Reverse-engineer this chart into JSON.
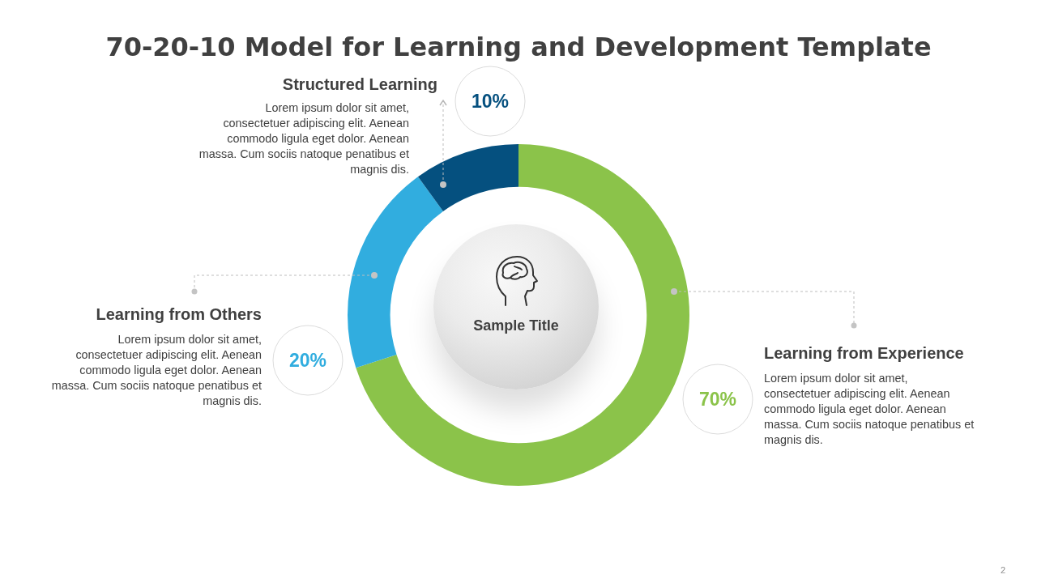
{
  "chart_data": {
    "type": "donut",
    "title": "70-20-10 Model for Learning and Development Template",
    "categories": [
      "Learning from Experience",
      "Learning from Others",
      "Structured Learning"
    ],
    "values": [
      70,
      20,
      10
    ],
    "colors": [
      "#8bc34a",
      "#31addf",
      "#05507f"
    ],
    "value_labels": [
      "70%",
      "20%",
      "10%"
    ],
    "annotations": [
      "Sample Title",
      "Lorem ipsum dolor sit amet, consectetuer adipiscing elit. Aenean commodo ligula eget dolor. Aenean massa. Cum sociis natoque penatibus et magnis dis.",
      "Lorem ipsum dolor sit amet, consectetuer adipiscing elit. Aenean commodo ligula eget dolor. Aenean massa. Cum sociis natoque penatibus et magnis dis.",
      "Lorem ipsum dolor sit amet, consectetuer adipiscing elit. Aenean commodo ligula eget dolor. Aenean massa. Cum sociis natoque penatibus et magnis dis.",
      "2"
    ]
  }
}
